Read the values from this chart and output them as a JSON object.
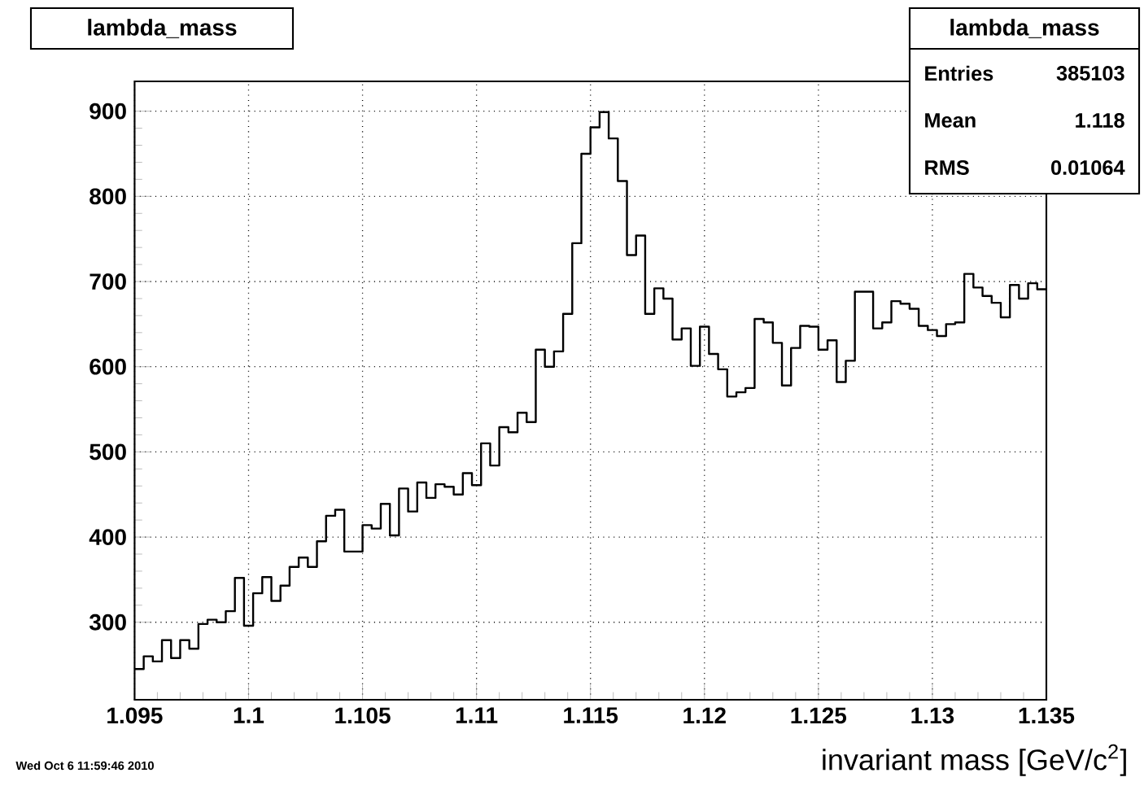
{
  "chart_data": {
    "type": "histogram",
    "title": "lambda_mass",
    "xlabel": "invariant mass [GeV/c$^{2}$]",
    "color": "#000000",
    "bins": [
      1.095,
      1.0954,
      1.0958,
      1.0962,
      1.0966,
      1.097,
      1.0974,
      1.0978,
      1.0982,
      1.0986,
      1.099,
      1.0994,
      1.0998,
      1.1002,
      1.1006,
      1.101,
      1.1014,
      1.1018,
      1.1022,
      1.1026,
      1.103,
      1.1034,
      1.1038,
      1.1042,
      1.1046,
      1.105,
      1.1054,
      1.1058,
      1.1062,
      1.1066,
      1.107,
      1.1074,
      1.1078,
      1.1082,
      1.1086,
      1.109,
      1.1094,
      1.1098,
      1.1102,
      1.1106,
      1.111,
      1.1114,
      1.1118,
      1.1122,
      1.1126,
      1.113,
      1.1134,
      1.1138,
      1.1142,
      1.1146,
      1.115,
      1.1154,
      1.1158,
      1.1162,
      1.1166,
      1.117,
      1.1174,
      1.1178,
      1.1182,
      1.1186,
      1.119,
      1.1194,
      1.1198,
      1.1202,
      1.1206,
      1.121,
      1.1214,
      1.1218,
      1.1222,
      1.1226,
      1.123,
      1.1234,
      1.1238,
      1.1242,
      1.1246,
      1.125,
      1.1254,
      1.1258,
      1.1262,
      1.1266,
      1.127,
      1.1274,
      1.1278,
      1.1282,
      1.1286,
      1.129,
      1.1294,
      1.1298,
      1.1302,
      1.1306,
      1.131,
      1.1314,
      1.1318,
      1.1322,
      1.1326,
      1.133,
      1.1334,
      1.1338,
      1.1342,
      1.1346,
      1.135
    ],
    "values": [
      245,
      260,
      254,
      279,
      258,
      279,
      269,
      298,
      303,
      300,
      313,
      352,
      296,
      334,
      353,
      325,
      343,
      365,
      376,
      365,
      395,
      425,
      432,
      383,
      383,
      414,
      410,
      439,
      402,
      457,
      430,
      464,
      446,
      462,
      459,
      450,
      475,
      461,
      510,
      484,
      529,
      523,
      546,
      535,
      620,
      600,
      618,
      662,
      745,
      850,
      881,
      899,
      868,
      818,
      731,
      754,
      662,
      692,
      680,
      632,
      645,
      601,
      647,
      615,
      597,
      565,
      570,
      575,
      656,
      652,
      628,
      578,
      622,
      648,
      647,
      620,
      631,
      582,
      607,
      688,
      688,
      645,
      652,
      677,
      674,
      668,
      648,
      643,
      636,
      650,
      652,
      709,
      693,
      683,
      675,
      658,
      696,
      680,
      698,
      691
    ],
    "xlim": [
      1.095,
      1.135
    ],
    "xticks": [
      1.095,
      1.1,
      1.105,
      1.11,
      1.115,
      1.12,
      1.125,
      1.13,
      1.135
    ],
    "ylim": [
      209,
      935
    ],
    "yticks": [
      300,
      400,
      500,
      600,
      700,
      800,
      900
    ],
    "grid": true,
    "annotations": [
      "Wed Oct  6 11:59:46 2010",
      "lambda_mass",
      "Entries",
      "385103",
      "Mean",
      "1.118",
      "RMS",
      "0.01064"
    ]
  }
}
